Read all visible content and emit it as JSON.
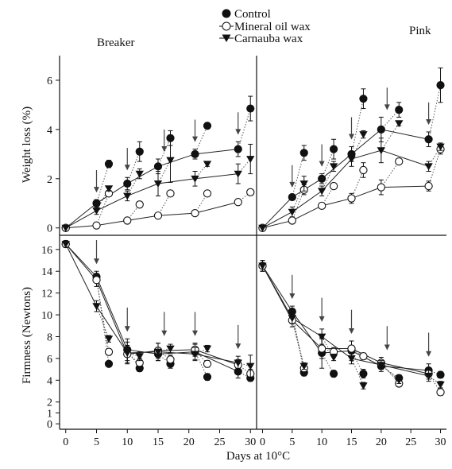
{
  "figure": {
    "legend": [
      {
        "key": "control",
        "label": "Control",
        "marker": "filled-circle"
      },
      {
        "key": "mineral",
        "label": "Mineral oil wax",
        "marker": "open-circle"
      },
      {
        "key": "carnauba",
        "label": "Carnauba wax",
        "marker": "filled-triangle-down"
      }
    ],
    "xlabel": "Days at 10°C",
    "colors": {
      "ink": "#111111",
      "marker_fill_open": "#ffffff"
    }
  },
  "chart_data": [
    {
      "type": "line",
      "panel": "weight-breaker",
      "title": "Breaker",
      "ylabel": "Weight loss (%)",
      "xlim": [
        -1,
        31
      ],
      "ylim": [
        -0.3,
        7
      ],
      "xticks": [],
      "yticks": [
        0,
        2,
        4,
        6
      ],
      "grid": false,
      "arrows_x": [
        5,
        10,
        16,
        21,
        28
      ],
      "series": [
        {
          "key": "control",
          "name": "Control",
          "x": [
            0,
            5,
            10,
            15,
            21,
            28
          ],
          "y": [
            0,
            1.0,
            1.8,
            2.5,
            3.0,
            3.2
          ],
          "err": [
            0,
            0.15,
            0.25,
            0.3,
            0.2,
            0.3
          ]
        },
        {
          "key": "mineral",
          "name": "Mineral oil wax",
          "x": [
            0,
            5,
            10,
            15,
            21,
            28
          ],
          "y": [
            0,
            0.1,
            0.3,
            0.5,
            0.6,
            1.05
          ],
          "err": [
            0,
            0.05,
            0.05,
            0.08,
            0.08,
            0.1
          ]
        },
        {
          "key": "carnauba",
          "name": "Carnauba wax",
          "x": [
            0,
            5,
            10,
            15,
            21,
            28
          ],
          "y": [
            0,
            0.7,
            1.3,
            1.8,
            2.0,
            2.2
          ],
          "err": [
            0,
            0.15,
            0.2,
            0.5,
            0.3,
            0.4
          ]
        }
      ],
      "transfer_points": [
        {
          "key": "control",
          "x": [
            7,
            12,
            17,
            23,
            30
          ],
          "y": [
            2.6,
            3.1,
            3.65,
            4.15,
            4.85
          ],
          "err": [
            0.15,
            0.4,
            0.3,
            0.1,
            0.5
          ]
        },
        {
          "key": "mineral",
          "x": [
            7,
            12,
            17,
            23,
            30
          ],
          "y": [
            1.4,
            0.95,
            1.4,
            1.4,
            1.45
          ],
          "err": [
            0.1,
            0.1,
            0.05,
            0.05,
            0.05
          ]
        },
        {
          "key": "carnauba",
          "x": [
            7,
            12,
            17,
            23,
            30
          ],
          "y": [
            1.6,
            2.2,
            2.75,
            2.6,
            2.8
          ],
          "err": [
            0.1,
            0.2,
            0.9,
            0.1,
            0.6
          ]
        }
      ]
    },
    {
      "type": "line",
      "panel": "weight-pink",
      "title": "Pink",
      "xlim": [
        -1,
        31
      ],
      "ylim": [
        -0.3,
        7
      ],
      "xticks": [],
      "yticks": [],
      "grid": false,
      "arrows_x": [
        5,
        10,
        15,
        21,
        28
      ],
      "series": [
        {
          "key": "control",
          "name": "Control",
          "x": [
            0,
            5,
            10,
            15,
            20,
            28
          ],
          "y": [
            0,
            1.25,
            2.0,
            3.0,
            4.0,
            3.6
          ],
          "err": [
            0,
            0.1,
            0.2,
            0.3,
            0.5,
            0.3
          ]
        },
        {
          "key": "mineral",
          "name": "Mineral oil wax",
          "x": [
            0,
            5,
            10,
            15,
            20,
            28
          ],
          "y": [
            0,
            0.3,
            0.9,
            1.2,
            1.65,
            1.7
          ],
          "err": [
            0,
            0.05,
            0.1,
            0.2,
            0.3,
            0.2
          ]
        },
        {
          "key": "carnauba",
          "name": "Carnauba wax",
          "x": [
            0,
            5,
            10,
            15,
            20,
            28
          ],
          "y": [
            0,
            0.65,
            1.5,
            2.8,
            3.15,
            2.5
          ],
          "err": [
            0,
            0.2,
            0.2,
            0.3,
            0.5,
            0.2
          ]
        }
      ],
      "transfer_points": [
        {
          "key": "control",
          "x": [
            7,
            12,
            17,
            23,
            30
          ],
          "y": [
            3.05,
            3.2,
            5.25,
            4.8,
            5.8
          ],
          "err": [
            0.3,
            0.4,
            0.4,
            0.3,
            0.7
          ]
        },
        {
          "key": "mineral",
          "x": [
            7,
            12,
            17,
            23,
            30
          ],
          "y": [
            1.55,
            1.7,
            2.35,
            2.7,
            3.2
          ],
          "err": [
            0.2,
            0.1,
            0.3,
            0.1,
            0.2
          ]
        },
        {
          "key": "carnauba",
          "x": [
            7,
            12,
            17,
            23,
            30
          ],
          "y": [
            1.8,
            2.5,
            3.8,
            4.25,
            3.3
          ],
          "err": [
            0.3,
            0.2,
            0.15,
            0.1,
            0.15
          ]
        }
      ]
    },
    {
      "type": "line",
      "panel": "firmness-breaker",
      "ylabel": "Firmness (Newtons)",
      "xlim": [
        -1,
        31
      ],
      "ylim": [
        -0.5,
        17.3
      ],
      "xticks": [
        0,
        5,
        10,
        15,
        20,
        25,
        30
      ],
      "yticks": [
        0,
        1,
        2,
        4,
        6,
        8,
        10,
        12,
        14,
        16
      ],
      "grid": false,
      "arrows_x": [
        5,
        10,
        16,
        21,
        28
      ],
      "series": [
        {
          "key": "control",
          "name": "Control",
          "x": [
            0,
            5,
            10,
            15,
            21,
            28
          ],
          "y": [
            16.5,
            13.5,
            6.8,
            6.4,
            6.6,
            4.8
          ],
          "err": [
            0.3,
            0.5,
            1.0,
            0.6,
            0.7,
            0.6
          ]
        },
        {
          "key": "mineral",
          "name": "Mineral oil wax",
          "x": [
            0,
            5,
            10,
            15,
            21,
            28
          ],
          "y": [
            16.5,
            13.2,
            6.4,
            6.7,
            6.8,
            5.4
          ],
          "err": [
            0.3,
            0.6,
            0.8,
            0.7,
            0.6,
            0.5
          ]
        },
        {
          "key": "carnauba",
          "name": "Carnauba wax",
          "x": [
            0,
            5,
            10,
            15,
            21,
            28
          ],
          "y": [
            16.5,
            10.8,
            6.5,
            6.6,
            6.4,
            5.6
          ],
          "err": [
            0.3,
            0.5,
            1.0,
            0.8,
            0.6,
            0.6
          ]
        }
      ],
      "transfer_points": [
        {
          "key": "control",
          "x": [
            7,
            12,
            17,
            23,
            30
          ],
          "y": [
            5.5,
            5.1,
            5.5,
            4.3,
            4.2
          ],
          "err": [
            0.2,
            0.3,
            0.4,
            0.3,
            0.3
          ]
        },
        {
          "key": "mineral",
          "x": [
            7,
            12,
            17,
            23,
            30
          ],
          "y": [
            6.6,
            5.6,
            5.9,
            5.5,
            4.6
          ],
          "err": [
            0.3,
            0.4,
            0.4,
            0.3,
            0.4
          ]
        },
        {
          "key": "carnauba",
          "x": [
            7,
            12,
            17,
            23,
            30
          ],
          "y": [
            7.8,
            6.2,
            6.9,
            6.9,
            5.3
          ],
          "err": [
            0.3,
            0.4,
            0.4,
            0.3,
            1.0
          ]
        }
      ]
    },
    {
      "type": "line",
      "panel": "firmness-pink",
      "xlim": [
        -1,
        31
      ],
      "ylim": [
        -0.5,
        17.3
      ],
      "xticks": [
        0,
        5,
        10,
        15,
        20,
        25,
        30
      ],
      "yticks": [],
      "grid": false,
      "arrows_x": [
        5,
        10,
        15,
        21,
        28
      ],
      "series": [
        {
          "key": "control",
          "name": "Control",
          "x": [
            0,
            5,
            10,
            15,
            20,
            28
          ],
          "y": [
            14.5,
            10.3,
            6.5,
            6.7,
            5.3,
            4.9
          ],
          "err": [
            0.5,
            0.5,
            1.4,
            0.9,
            0.5,
            0.6
          ]
        },
        {
          "key": "mineral",
          "name": "Mineral oil wax",
          "x": [
            0,
            5,
            10,
            15,
            20,
            28
          ],
          "y": [
            14.5,
            9.5,
            6.9,
            6.9,
            5.6,
            4.6
          ],
          "err": [
            0.5,
            0.6,
            0.9,
            0.7,
            0.5,
            0.5
          ]
        },
        {
          "key": "carnauba",
          "name": "Carnauba wax",
          "x": [
            0,
            5,
            10,
            15,
            20,
            28
          ],
          "y": [
            14.5,
            9.7,
            8.0,
            6.0,
            5.4,
            4.4
          ],
          "err": [
            0.5,
            0.5,
            0.7,
            0.5,
            0.4,
            0.5
          ]
        }
      ],
      "transfer_points": [
        {
          "key": "control",
          "x": [
            7,
            12,
            17,
            23,
            30
          ],
          "y": [
            4.7,
            4.6,
            4.6,
            4.2,
            4.5
          ],
          "err": [
            0.3,
            0.3,
            0.4,
            0.3,
            0.3
          ]
        },
        {
          "key": "mineral",
          "x": [
            7,
            12,
            17,
            23,
            30
          ],
          "y": [
            5.1,
            6.6,
            6.2,
            3.7,
            2.9
          ],
          "err": [
            0.3,
            0.4,
            0.3,
            0.3,
            0.3
          ]
        },
        {
          "key": "carnauba",
          "x": [
            7,
            12,
            17,
            23,
            30
          ],
          "y": [
            5.3,
            6.1,
            3.5,
            4.0,
            3.6
          ],
          "err": [
            0.3,
            0.3,
            0.3,
            0.3,
            0.3
          ]
        }
      ]
    }
  ]
}
